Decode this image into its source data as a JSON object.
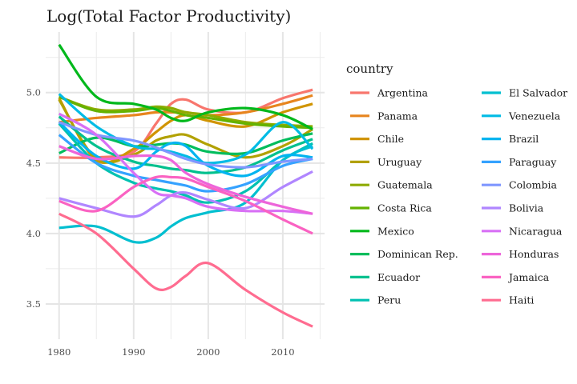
{
  "chart_data": {
    "type": "line",
    "title": "Log(Total Factor Productivity)",
    "xlabel": "",
    "ylabel": "",
    "xlim": [
      1978.2,
      2015.6
    ],
    "ylim": [
      3.25,
      5.43
    ],
    "x_ticks": [
      1980,
      1990,
      2000,
      2010
    ],
    "x_minor_ticks": [
      1985,
      1995,
      2005,
      2015
    ],
    "y_ticks": [
      3.5,
      4.0,
      4.5,
      5.0
    ],
    "y_tick_labels": [
      "3.5",
      "4.0",
      "4.5",
      "5.0"
    ],
    "y_minor_ticks": [
      3.75,
      4.25,
      4.75,
      5.25
    ],
    "grid": true,
    "legend_title": "country",
    "legend_position": "right",
    "x": [
      1980,
      1985,
      1990,
      1993,
      1995,
      1997,
      2000,
      2005,
      2010,
      2014
    ],
    "series": [
      {
        "name": "Argentina",
        "color": "#F8766D",
        "values": [
          4.54,
          4.54,
          4.58,
          4.78,
          4.92,
          4.95,
          4.88,
          4.86,
          4.96,
          5.02
        ]
      },
      {
        "name": "Panama",
        "color": "#E7851E",
        "values": [
          4.79,
          4.82,
          4.84,
          4.86,
          4.86,
          4.86,
          4.84,
          4.86,
          4.92,
          4.98
        ]
      },
      {
        "name": "Chile",
        "color": "#D09400",
        "values": [
          4.96,
          4.52,
          4.6,
          4.72,
          4.8,
          4.84,
          4.8,
          4.76,
          4.86,
          4.92
        ]
      },
      {
        "name": "Uruguay",
        "color": "#B2A100",
        "values": [
          4.95,
          4.53,
          4.56,
          4.66,
          4.69,
          4.7,
          4.63,
          4.54,
          4.62,
          4.74
        ]
      },
      {
        "name": "Guatemala",
        "color": "#8EAB00",
        "values": [
          4.97,
          4.88,
          4.88,
          4.9,
          4.89,
          4.86,
          4.84,
          4.79,
          4.77,
          4.76
        ]
      },
      {
        "name": "Costa Rica",
        "color": "#64B200",
        "values": [
          4.97,
          4.87,
          4.87,
          4.89,
          4.87,
          4.84,
          4.82,
          4.78,
          4.76,
          4.75
        ]
      },
      {
        "name": "Mexico",
        "color": "#00B81B",
        "values": [
          5.34,
          4.97,
          4.92,
          4.88,
          4.82,
          4.8,
          4.86,
          4.89,
          4.84,
          4.74
        ]
      },
      {
        "name": "Dominican Rep.",
        "color": "#00BD5C",
        "values": [
          4.57,
          4.68,
          4.62,
          4.63,
          4.64,
          4.63,
          4.58,
          4.57,
          4.66,
          4.71
        ]
      },
      {
        "name": "Ecuador",
        "color": "#00C08E",
        "values": [
          4.83,
          4.62,
          4.51,
          4.48,
          4.46,
          4.45,
          4.43,
          4.47,
          4.59,
          4.67
        ]
      },
      {
        "name": "Peru",
        "color": "#00C1B2",
        "values": [
          4.78,
          4.5,
          4.36,
          4.32,
          4.3,
          4.27,
          4.22,
          4.3,
          4.52,
          4.64
        ]
      },
      {
        "name": "El Salvador",
        "color": "#00BFD0",
        "values": [
          4.04,
          4.05,
          3.94,
          3.97,
          4.05,
          4.11,
          4.15,
          4.22,
          4.52,
          4.62
        ]
      },
      {
        "name": "Venezuela",
        "color": "#00BBE5",
        "values": [
          4.99,
          4.76,
          4.62,
          4.6,
          4.58,
          4.55,
          4.5,
          4.56,
          4.79,
          4.6
        ]
      },
      {
        "name": "Brazil",
        "color": "#00B4F0",
        "values": [
          4.79,
          4.55,
          4.46,
          4.58,
          4.64,
          4.62,
          4.48,
          4.41,
          4.55,
          4.54
        ]
      },
      {
        "name": "Paraguay",
        "color": "#35A2FF",
        "values": [
          4.7,
          4.5,
          4.41,
          4.38,
          4.36,
          4.34,
          4.3,
          4.35,
          4.48,
          4.53
        ]
      },
      {
        "name": "Colombia",
        "color": "#7F96FF",
        "values": [
          4.79,
          4.7,
          4.66,
          4.61,
          4.57,
          4.53,
          4.49,
          4.47,
          4.51,
          4.53
        ]
      },
      {
        "name": "Bolivia",
        "color": "#B086FF",
        "values": [
          4.25,
          4.18,
          4.12,
          4.2,
          4.27,
          4.29,
          4.24,
          4.18,
          4.33,
          4.44
        ]
      },
      {
        "name": "Nicaragua",
        "color": "#D870F5",
        "values": [
          4.85,
          4.7,
          4.43,
          4.29,
          4.27,
          4.25,
          4.19,
          4.16,
          4.16,
          4.14
        ]
      },
      {
        "name": "Honduras",
        "color": "#ED65DA",
        "values": [
          4.62,
          4.53,
          4.55,
          4.55,
          4.52,
          4.43,
          4.35,
          4.26,
          4.19,
          4.14
        ]
      },
      {
        "name": "Jamaica",
        "color": "#FA62C2",
        "values": [
          4.23,
          4.16,
          4.33,
          4.4,
          4.4,
          4.39,
          4.33,
          4.23,
          4.1,
          4.0
        ]
      },
      {
        "name": "Haiti",
        "color": "#FF6C90",
        "values": [
          4.14,
          4.0,
          3.75,
          3.61,
          3.62,
          3.7,
          3.79,
          3.6,
          3.44,
          3.34
        ]
      }
    ]
  }
}
